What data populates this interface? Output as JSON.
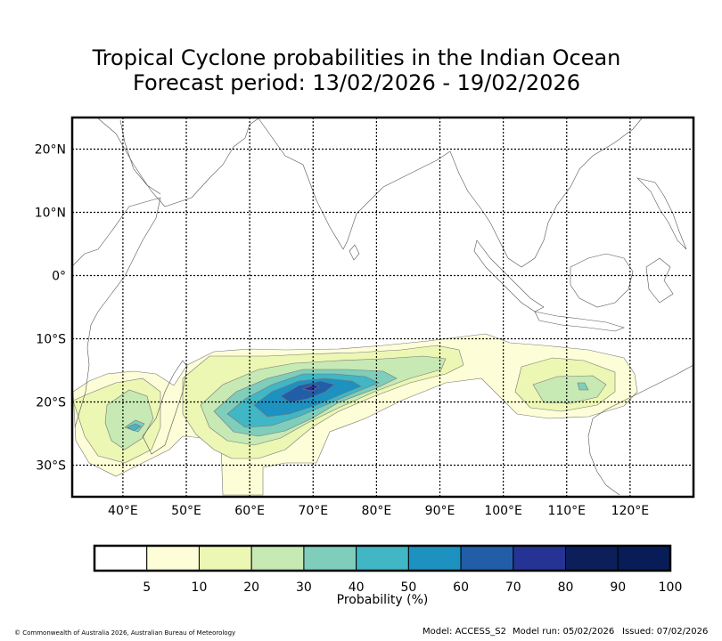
{
  "title": {
    "line1": "Tropical Cyclone probabilities in the Indian Ocean",
    "line2": "Forecast period: 13/02/2026 - 19/02/2026"
  },
  "map": {
    "lat_labels": [
      "20°N",
      "10°N",
      "0°",
      "10°S",
      "20°S",
      "30°S"
    ],
    "lat_values": [
      20,
      10,
      0,
      -10,
      -20,
      -30
    ],
    "lon_labels": [
      "40°E",
      "50°E",
      "60°E",
      "70°E",
      "80°E",
      "90°E",
      "100°E",
      "110°E",
      "120°E"
    ],
    "lon_values": [
      40,
      50,
      60,
      70,
      80,
      90,
      100,
      110,
      120
    ],
    "lon_range": [
      32,
      130
    ],
    "lat_range": [
      -35,
      25
    ]
  },
  "legend": {
    "label": "Probability (%)",
    "ticks": [
      "5",
      "10",
      "20",
      "30",
      "40",
      "50",
      "60",
      "70",
      "80",
      "90",
      "100"
    ],
    "colors": [
      "#ffffff",
      "#fdfed7",
      "#ecf7b4",
      "#c7e9b4",
      "#7fcdbb",
      "#41b6c4",
      "#1d91c0",
      "#225ea8",
      "#253494",
      "#0c1f5a",
      "#081d58"
    ]
  },
  "footer": {
    "copyright": "© Commonwealth of Australia 2026, Australian Bureau of Meteorology",
    "model": "Model: ACCESS_S2",
    "model_run": "Model run: 05/02/2026",
    "issued": "Issued: 07/02/2026"
  }
}
